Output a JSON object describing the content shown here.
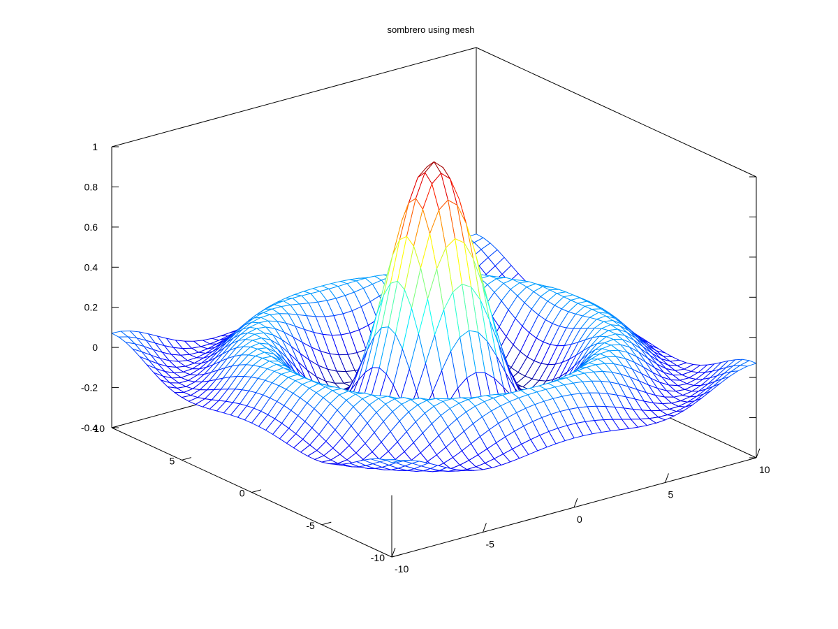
{
  "chart_data": {
    "type": "surface-mesh",
    "title": "sombrero using mesh",
    "function": "z = sin(sqrt(x^2 + y^2)) / sqrt(x^2 + y^2)",
    "grid_points_per_side": 41,
    "x_range": [
      -10,
      10
    ],
    "y_range": [
      -10,
      10
    ],
    "zlim": [
      -0.4,
      1
    ],
    "x_ticks": [
      -10,
      -5,
      0,
      5,
      10
    ],
    "y_ticks": [
      -10,
      -5,
      0,
      5,
      10
    ],
    "z_ticks": [
      -0.4,
      -0.2,
      0,
      0.2,
      0.4,
      0.6,
      0.8,
      1
    ],
    "x_tick_labels": [
      "-10",
      "-5",
      "0",
      "5",
      "10"
    ],
    "y_tick_labels": [
      "-10",
      "-5",
      "0",
      "5",
      "10"
    ],
    "z_tick_labels": [
      "-0.4",
      "-0.2",
      "0",
      "0.2",
      "0.4",
      "0.6",
      "0.8",
      "1"
    ],
    "colormap": "jet",
    "box": true,
    "grid": false
  }
}
